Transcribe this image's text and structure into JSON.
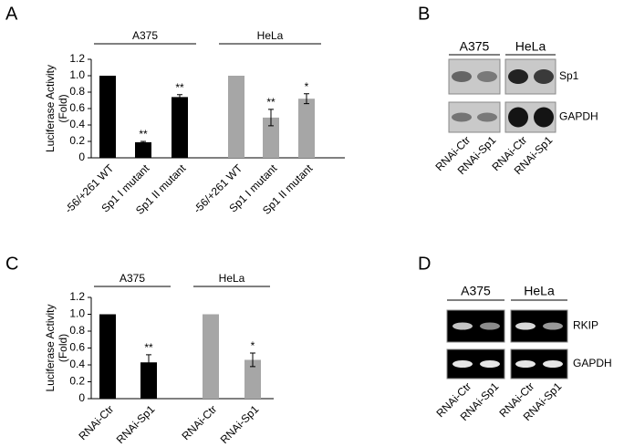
{
  "panels": [
    "A",
    "B",
    "C",
    "D"
  ],
  "chart_data": [
    {
      "type": "bar",
      "ylabel": [
        "Luciferase Activity",
        "(Fold)"
      ],
      "ylim": [
        0,
        1.2
      ],
      "yticks": [
        0,
        0.2,
        0.4,
        0.6,
        0.8,
        {
          "value": 1,
          "label": "1.0"
        },
        1.2
      ],
      "groups": [
        {
          "name": "A375",
          "color": "#000000",
          "categories": [
            "-56/+261 WT",
            "Sp1 I mutant",
            "Sp1 II mutant"
          ],
          "values": [
            1.0,
            0.19,
            0.74
          ],
          "errors": [
            0,
            0.01,
            0.03
          ],
          "stars": [
            null,
            "**",
            "**"
          ]
        },
        {
          "name": "HeLa",
          "color": "#a6a6a6",
          "categories": [
            "-56/+261 WT",
            "Sp1 I mutant",
            "Sp1 II mutant"
          ],
          "values": [
            1.0,
            0.49,
            0.72
          ],
          "errors": [
            0,
            0.1,
            0.06
          ],
          "stars": [
            null,
            "**",
            "*"
          ]
        }
      ]
    },
    {
      "type": "bar",
      "ylabel": [
        "Luciferase Activity",
        "(Fold)"
      ],
      "ylim": [
        0,
        1.2
      ],
      "yticks": [
        0,
        0.2,
        0.4,
        0.6,
        0.8,
        {
          "value": 1,
          "label": "1.0"
        },
        1.2
      ],
      "groups": [
        {
          "name": "A375",
          "color": "#000000",
          "categories": [
            "RNAi-Ctr",
            "RNAi-Sp1"
          ],
          "values": [
            1.0,
            0.43
          ],
          "errors": [
            0,
            0.09
          ],
          "stars": [
            null,
            "**"
          ]
        },
        {
          "name": "HeLa",
          "color": "#a6a6a6",
          "categories": [
            "RNAi-Ctr",
            "RNAi-Sp1"
          ],
          "values": [
            1.0,
            0.46
          ],
          "errors": [
            0,
            0.08
          ],
          "stars": [
            null,
            "*"
          ]
        }
      ]
    }
  ],
  "blots": [
    {
      "groups": [
        "A375",
        "HeLa"
      ],
      "rows": [
        "Sp1",
        "GAPDH"
      ],
      "lanes": [
        "RNAi-Ctr",
        "RNAi-Sp1",
        "RNAi-Ctr",
        "RNAi-Sp1"
      ]
    },
    {
      "groups": [
        "A375",
        "HeLa"
      ],
      "rows": [
        "RKIP",
        "GAPDH"
      ],
      "lanes": [
        "RNAi-Ctr",
        "RNAi-Sp1",
        "RNAi-Ctr",
        "RNAi-Sp1"
      ]
    }
  ]
}
